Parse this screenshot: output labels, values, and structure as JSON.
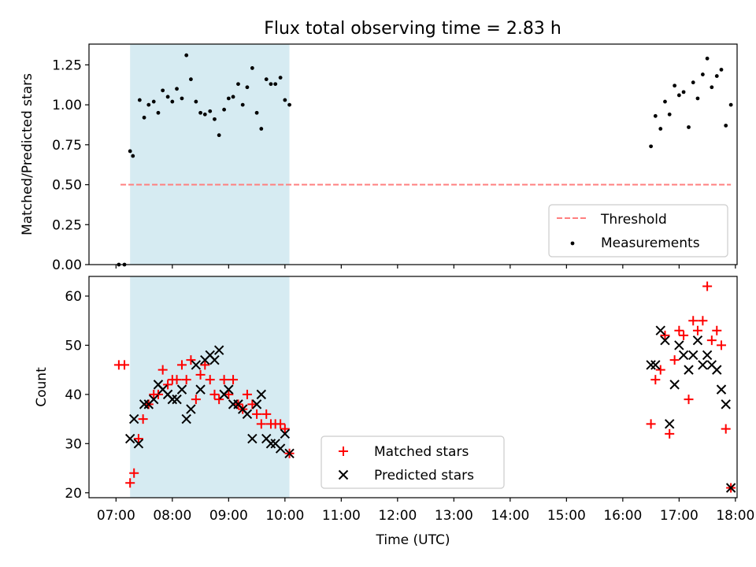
{
  "title": "Flux total observing time = 2.83 h",
  "chart_data": [
    {
      "type": "scatter",
      "ylabel": "Matched/Predicted stars",
      "xlabel": "",
      "xlim": [
        6.52,
        18.03
      ],
      "ylim": [
        0,
        1.38
      ],
      "yticks": [
        0,
        0.25,
        0.5,
        0.75,
        1.0,
        1.25
      ],
      "ytick_labels": [
        "0.00",
        "0.25",
        "0.50",
        "0.75",
        "1.00",
        "1.25"
      ],
      "shaded_span": [
        7.25,
        10.08
      ],
      "shaded_color": "#add8e6",
      "legend_position": "lower-right",
      "series": [
        {
          "name": "Threshold",
          "kind": "line",
          "style": "dashed",
          "color": "#ff7f7f",
          "x": [
            7.08,
            17.92
          ],
          "y": [
            0.5,
            0.5
          ]
        },
        {
          "name": "Measurements",
          "kind": "scatter",
          "marker": "dot",
          "color": "#000000",
          "x": [
            7.05,
            7.15,
            7.25,
            7.3,
            7.42,
            7.5,
            7.58,
            7.67,
            7.75,
            7.83,
            7.92,
            8.0,
            8.08,
            8.17,
            8.25,
            8.33,
            8.42,
            8.5,
            8.58,
            8.67,
            8.75,
            8.83,
            8.92,
            9.0,
            9.08,
            9.17,
            9.25,
            9.33,
            9.42,
            9.5,
            9.58,
            9.67,
            9.75,
            9.83,
            9.92,
            10.0,
            10.08,
            16.5,
            16.58,
            16.67,
            16.75,
            16.83,
            16.92,
            17.0,
            17.08,
            17.17,
            17.25,
            17.33,
            17.42,
            17.5,
            17.58,
            17.67,
            17.75,
            17.83,
            17.92
          ],
          "y": [
            0.0,
            0.0,
            0.71,
            0.68,
            1.03,
            0.92,
            1.0,
            1.02,
            0.95,
            1.09,
            1.05,
            1.02,
            1.1,
            1.04,
            1.31,
            1.16,
            1.02,
            0.95,
            0.94,
            0.96,
            0.91,
            0.81,
            0.97,
            1.04,
            1.05,
            1.13,
            1.0,
            1.11,
            1.23,
            0.95,
            0.85,
            1.16,
            1.13,
            1.13,
            1.17,
            1.03,
            1.0,
            0.74,
            0.93,
            0.85,
            1.02,
            0.94,
            1.12,
            1.06,
            1.08,
            0.86,
            1.14,
            1.04,
            1.19,
            1.29,
            1.11,
            1.18,
            1.22,
            0.87,
            1.0
          ]
        }
      ]
    },
    {
      "type": "scatter",
      "ylabel": "Count",
      "xlabel": "Time (UTC)",
      "xlim": [
        6.52,
        18.03
      ],
      "ylim": [
        19,
        64
      ],
      "yticks": [
        20,
        30,
        40,
        50,
        60
      ],
      "ytick_labels": [
        "20",
        "30",
        "40",
        "50",
        "60"
      ],
      "xticks": [
        7,
        8,
        9,
        10,
        11,
        12,
        13,
        14,
        15,
        16,
        17,
        18
      ],
      "xtick_labels": [
        "07:00",
        "08:00",
        "09:00",
        "10:00",
        "11:00",
        "12:00",
        "13:00",
        "14:00",
        "15:00",
        "16:00",
        "17:00",
        "18:00"
      ],
      "shaded_span": [
        7.25,
        10.08
      ],
      "shaded_color": "#add8e6",
      "legend_position": "lower-center",
      "series": [
        {
          "name": "Matched stars",
          "kind": "scatter",
          "marker": "plus",
          "color": "#ff0000",
          "x": [
            7.05,
            7.15,
            7.25,
            7.32,
            7.4,
            7.48,
            7.58,
            7.67,
            7.75,
            7.83,
            7.92,
            8.0,
            8.08,
            8.17,
            8.25,
            8.33,
            8.42,
            8.5,
            8.58,
            8.67,
            8.75,
            8.83,
            8.92,
            9.0,
            9.08,
            9.17,
            9.25,
            9.33,
            9.42,
            9.5,
            9.58,
            9.67,
            9.75,
            9.83,
            9.92,
            10.0,
            10.08,
            16.5,
            16.58,
            16.67,
            16.75,
            16.83,
            16.92,
            17.0,
            17.08,
            17.17,
            17.25,
            17.33,
            17.42,
            17.5,
            17.58,
            17.67,
            17.75,
            17.83,
            17.92
          ],
          "y": [
            46,
            46,
            22,
            24,
            31,
            35,
            38,
            40,
            40,
            45,
            42,
            43,
            43,
            46,
            43,
            47,
            39,
            44,
            46,
            43,
            40,
            39,
            43,
            40,
            43,
            38,
            37,
            40,
            38,
            36,
            34,
            36,
            34,
            34,
            34,
            33,
            28,
            34,
            43,
            45,
            52,
            32,
            47,
            53,
            52,
            39,
            55,
            53,
            55,
            62,
            51,
            53,
            50,
            33,
            21
          ]
        },
        {
          "name": "Predicted stars",
          "kind": "scatter",
          "marker": "cross",
          "color": "#000000",
          "x": [
            7.25,
            7.32,
            7.4,
            7.5,
            7.58,
            7.67,
            7.75,
            7.83,
            7.92,
            8.0,
            8.08,
            8.17,
            8.25,
            8.33,
            8.42,
            8.5,
            8.58,
            8.67,
            8.75,
            8.83,
            8.92,
            9.0,
            9.08,
            9.17,
            9.25,
            9.33,
            9.42,
            9.5,
            9.58,
            9.67,
            9.75,
            9.83,
            9.92,
            10.0,
            10.08,
            16.5,
            16.58,
            16.67,
            16.75,
            16.83,
            16.92,
            17.0,
            17.08,
            17.17,
            17.25,
            17.33,
            17.42,
            17.5,
            17.58,
            17.67,
            17.75,
            17.83,
            17.92
          ],
          "y": [
            31,
            35,
            30,
            38,
            38,
            39,
            42,
            41,
            40,
            39,
            39,
            41,
            35,
            37,
            46,
            41,
            47,
            48,
            47,
            49,
            40,
            41,
            38,
            38,
            37,
            36,
            31,
            38,
            40,
            31,
            30,
            30,
            29,
            32,
            28,
            46,
            46,
            53,
            51,
            34,
            42,
            50,
            48,
            45,
            48,
            51,
            46,
            48,
            46,
            45,
            41,
            38,
            21
          ]
        }
      ]
    }
  ]
}
